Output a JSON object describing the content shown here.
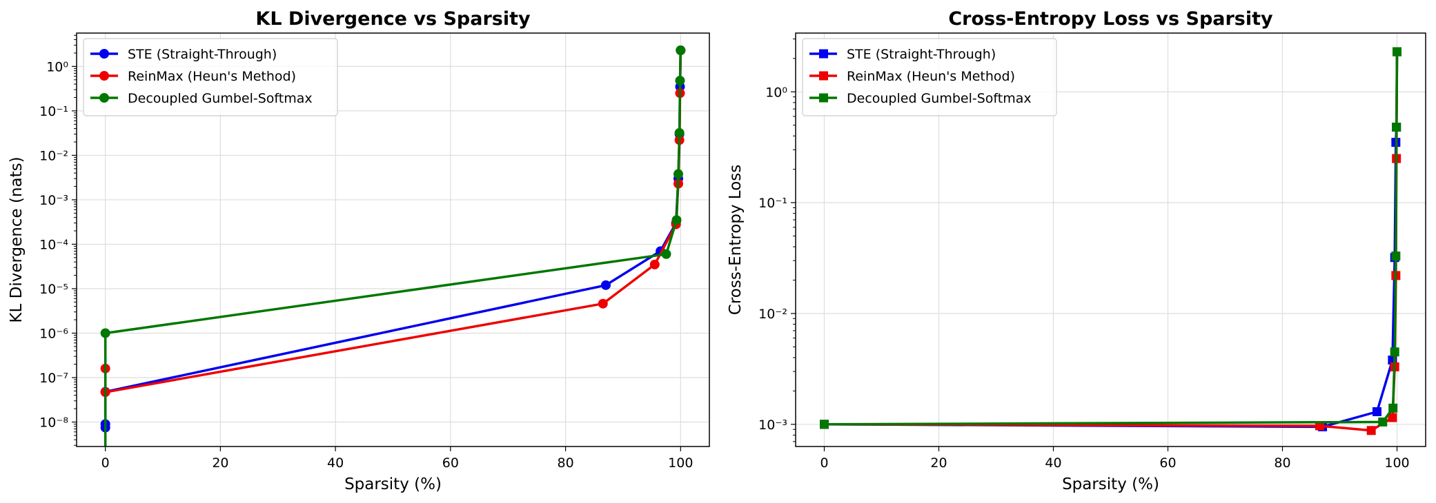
{
  "chart_data": [
    {
      "type": "line",
      "title": "KL Divergence vs Sparsity",
      "xlabel": "Sparsity (%)",
      "ylabel": "KL Divergence (nats)",
      "xlim": [
        -5,
        105
      ],
      "ylim_log10": [
        -8.55,
        0.75
      ],
      "yscale": "log",
      "grid": true,
      "legend_position": "top-left",
      "marker": "circle",
      "xticks": [
        0,
        20,
        40,
        60,
        80,
        100
      ],
      "xtick_labels": [
        "0",
        "20",
        "40",
        "60",
        "80",
        "100"
      ],
      "yticks": [
        1e-08,
        1e-07,
        1e-06,
        1e-05,
        0.0001,
        0.001,
        0.01,
        0.1,
        1
      ],
      "ytick_labels": [
        "10⁻⁸",
        "10⁻⁷",
        "10⁻⁶",
        "10⁻⁵",
        "10⁻⁴",
        "10⁻³",
        "10⁻²",
        "10⁻¹",
        "10⁰"
      ],
      "series": [
        {
          "name": "STE (Straight-Through)",
          "color": "#0000ee",
          "x": [
            0,
            0,
            0,
            87,
            96.5,
            99.2,
            99.6,
            99.8,
            99.9,
            100
          ],
          "y": [
            7.5e-09,
            9e-09,
            4.8e-08,
            1.2e-05,
            7e-05,
            0.0003,
            0.003,
            0.03,
            0.35,
            2.3
          ]
        },
        {
          "name": "ReinMax (Heun's Method)",
          "color": "#ee0000",
          "x": [
            0,
            0,
            86.5,
            95.5,
            99.2,
            99.6,
            99.8,
            99.9,
            100
          ],
          "y": [
            1.6e-07,
            4.7e-08,
            4.6e-06,
            3.5e-05,
            0.00028,
            0.0023,
            0.022,
            0.25,
            2.3
          ]
        },
        {
          "name": "Decoupled Gumbel-Softmax",
          "color": "#007700",
          "x": [
            0,
            0,
            97.5,
            99.3,
            99.6,
            99.8,
            99.9,
            100
          ],
          "y": [
            1e-09,
            1e-06,
            6e-05,
            0.00035,
            0.0038,
            0.032,
            0.48,
            2.3
          ]
        }
      ]
    },
    {
      "type": "line",
      "title": "Cross-Entropy Loss vs Sparsity",
      "xlabel": "Sparsity (%)",
      "ylabel": "Cross-Entropy Loss",
      "xlim": [
        -5,
        105
      ],
      "ylim_log10": [
        -3.2,
        0.53
      ],
      "yscale": "log",
      "grid": true,
      "legend_position": "top-left",
      "marker": "square",
      "xticks": [
        0,
        20,
        40,
        60,
        80,
        100
      ],
      "xtick_labels": [
        "0",
        "20",
        "40",
        "60",
        "80",
        "100"
      ],
      "yticks": [
        0.001,
        0.01,
        0.1,
        1
      ],
      "ytick_labels": [
        "10⁻³",
        "10⁻²",
        "10⁻¹",
        "10⁰"
      ],
      "series": [
        {
          "name": "STE (Straight-Through)",
          "color": "#0000ee",
          "x": [
            0,
            87,
            96.5,
            99.2,
            99.6,
            99.8,
            99.9,
            100
          ],
          "y": [
            0.001,
            0.00095,
            0.0013,
            0.0038,
            0.032,
            0.35,
            0.48,
            2.3
          ]
        },
        {
          "name": "ReinMax (Heun's Method)",
          "color": "#ee0000",
          "x": [
            0,
            86.5,
            95.5,
            99.2,
            99.6,
            99.8,
            99.9,
            100
          ],
          "y": [
            0.001,
            0.00097,
            0.00088,
            0.00115,
            0.0033,
            0.022,
            0.25,
            2.3
          ]
        },
        {
          "name": "Decoupled Gumbel-Softmax",
          "color": "#007700",
          "x": [
            0,
            97.5,
            99.3,
            99.6,
            99.8,
            99.9,
            100
          ],
          "y": [
            0.001,
            0.00105,
            0.0014,
            0.0045,
            0.033,
            0.48,
            2.3
          ]
        }
      ]
    }
  ]
}
